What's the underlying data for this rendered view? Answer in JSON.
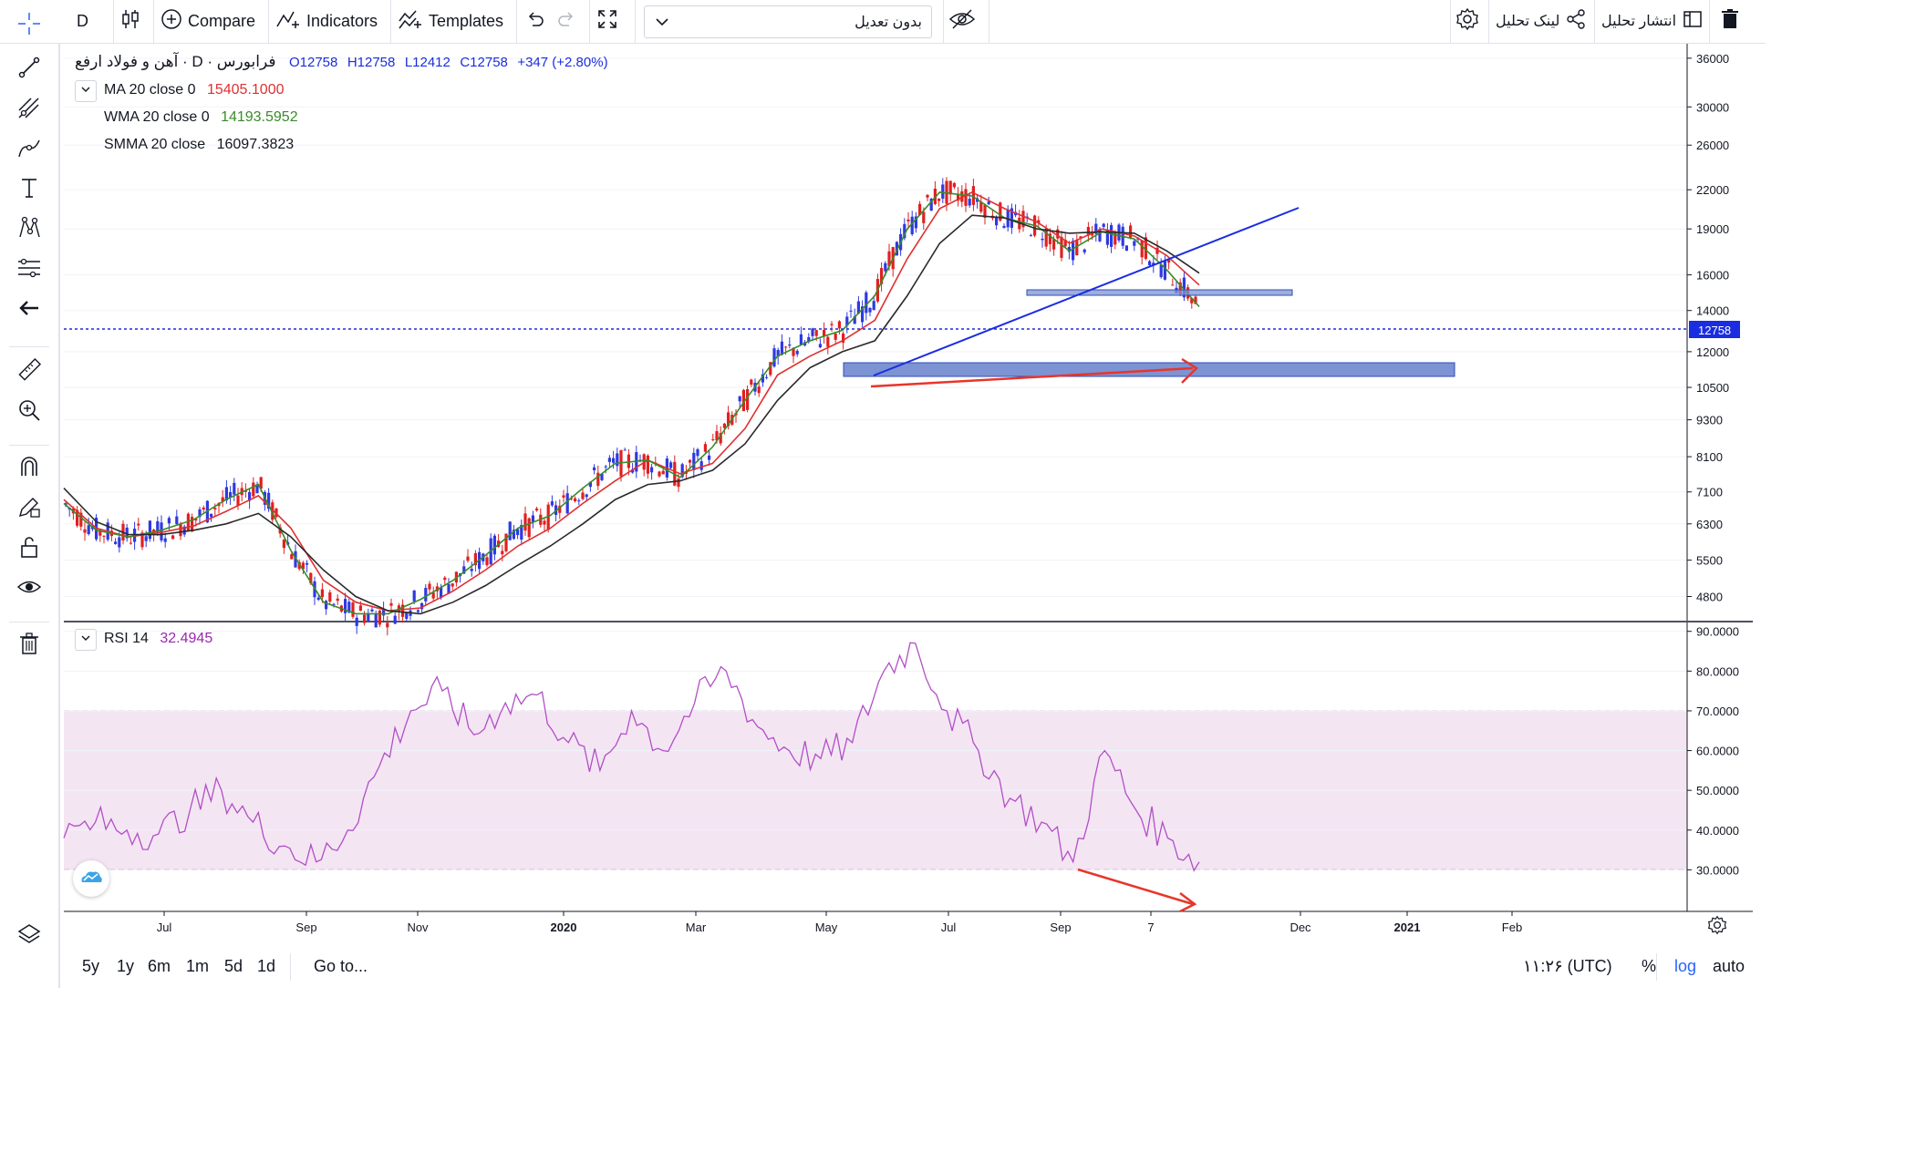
{
  "toolbar": {
    "interval": "D",
    "compare": "Compare",
    "indicators": "Indicators",
    "templates": "Templates",
    "adjustment": "بدون تعدیل",
    "share_link": "لینک تحلیل",
    "publish": "انتشار تحلیل"
  },
  "legend": {
    "symbol": "آهن و فولاد ارفع · D · فرابورس",
    "open": "O12758",
    "high": "H12758",
    "low": "L12412",
    "close": "C12758",
    "change": "+347 (+2.80%)",
    "ma_label": "MA 20 close 0",
    "ma_value": "15405.1000",
    "wma_label": "WMA 20 close 0",
    "wma_value": "14193.5952",
    "smma_label": "SMMA 20 close",
    "smma_value": "16097.3823",
    "rsi_label": "RSI 14",
    "rsi_value": "32.4945"
  },
  "price_axis": [
    "36000",
    "30000",
    "26000",
    "22000",
    "19000",
    "16000",
    "14000",
    "12000",
    "10500",
    "9300",
    "8100",
    "7100",
    "6300",
    "5500",
    "4800"
  ],
  "current_price": "12758",
  "rsi_axis": [
    "90.0000",
    "80.0000",
    "70.0000",
    "60.0000",
    "50.0000",
    "40.0000",
    "30.0000"
  ],
  "time_axis": [
    "Jul",
    "Sep",
    "Nov",
    "2020",
    "Mar",
    "May",
    "Jul",
    "Sep",
    "7",
    "Dec",
    "2021",
    "Feb"
  ],
  "bottom": {
    "ranges": [
      "5y",
      "1y",
      "6m",
      "1m",
      "5d",
      "1d"
    ],
    "goto": "Go to...",
    "time": "۱۱:۲۶ (UTC)",
    "percent": "%",
    "log": "log",
    "auto": "auto"
  },
  "colors": {
    "accent": "#2962ff",
    "up": "#2f39e0",
    "down": "#e02020",
    "ma": "#e03030",
    "wma": "#3a8a2a",
    "smma": "#2a2a2a",
    "rsi": "#b14fc6",
    "rsi_band": "#f0dcef"
  },
  "chart_data": {
    "type": "line",
    "price_scale": "log",
    "price_ylim": [
      4400,
      38000
    ],
    "rsi_ylim": [
      20,
      92
    ],
    "rsi_levels": [
      30,
      70
    ],
    "series": [
      {
        "name": "MA 20 close 0",
        "values": [
          6900,
          6200,
          6000,
          6100,
          6250,
          6600,
          7000,
          6200,
          5100,
          4700,
          4550,
          4600,
          4900,
          5300,
          5800,
          6200,
          6800,
          7400,
          8000,
          7600,
          7900,
          9000,
          11000,
          11800,
          12500,
          13500,
          17000,
          20500,
          21800,
          20500,
          19500,
          18000,
          19000,
          18500,
          17200,
          15400
        ]
      },
      {
        "name": "WMA 20 close 0",
        "values": [
          6800,
          6150,
          6000,
          6150,
          6400,
          6900,
          7300,
          5700,
          4700,
          4500,
          4500,
          4750,
          5100,
          5600,
          6200,
          6500,
          7200,
          7900,
          8000,
          7500,
          8400,
          10000,
          11800,
          12500,
          13000,
          14800,
          19000,
          21800,
          21500,
          19800,
          19200,
          17500,
          18800,
          18300,
          16300,
          14200
        ]
      },
      {
        "name": "SMMA 20 close",
        "values": [
          7200,
          6350,
          6050,
          6050,
          6150,
          6300,
          6550,
          6000,
          5300,
          4800,
          4550,
          4500,
          4700,
          5000,
          5400,
          5800,
          6300,
          6900,
          7300,
          7400,
          7700,
          8500,
          10000,
          11300,
          12000,
          12500,
          14800,
          18000,
          20000,
          19800,
          19000,
          18700,
          18800,
          18700,
          17500,
          16100
        ]
      },
      {
        "name": "RSI 14",
        "values": [
          38,
          42,
          40,
          39,
          45,
          50,
          42,
          36,
          32,
          40,
          56,
          70,
          75,
          64,
          72,
          74,
          62,
          55,
          70,
          60,
          72,
          80,
          66,
          60,
          58,
          62,
          80,
          87,
          70,
          60,
          48,
          42,
          32,
          60,
          45,
          38,
          32
        ]
      }
    ]
  }
}
